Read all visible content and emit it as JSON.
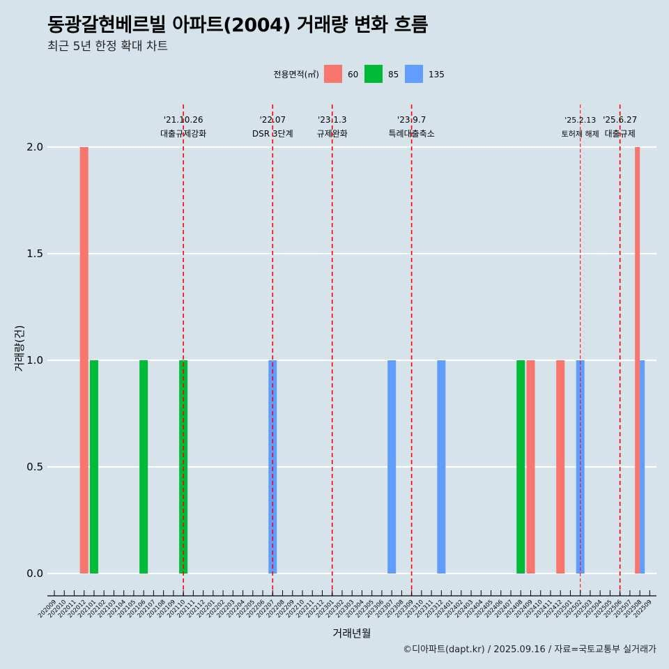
{
  "title": "동광갈현베르빌 아파트(2004) 거래량 변화 흐름",
  "subtitle": "최근 5년 한정 확대 차트",
  "caption": "©디아파트(dapt.kr) / 2025.09.16 / 자료=국토교통부 실거래가",
  "colors": {
    "background": "#d6e3ea",
    "s60": "#f8766d",
    "s85": "#00ba38",
    "s135": "#619cff",
    "event": "#ff0000",
    "grid": "#ffffff"
  },
  "chart_data": {
    "type": "bar",
    "title": "동광갈현베르빌 아파트(2004) 거래량 변화 흐름",
    "xlabel": "거래년월",
    "ylabel": "거래량(건)",
    "ylim": [
      0,
      2
    ],
    "yticks": [
      "0.0",
      "0.5",
      "1.0",
      "1.5",
      "2.0"
    ],
    "legend": {
      "title": "전용면적(㎡)",
      "position": "top"
    },
    "categories": [
      "202009",
      "202010",
      "202011",
      "202012",
      "202101",
      "202102",
      "202103",
      "202104",
      "202105",
      "202106",
      "202107",
      "202108",
      "202109",
      "202110",
      "202111",
      "202112",
      "202201",
      "202202",
      "202203",
      "202204",
      "202205",
      "202206",
      "202207",
      "202208",
      "202209",
      "202210",
      "202211",
      "202212",
      "202301",
      "202302",
      "202303",
      "202304",
      "202305",
      "202306",
      "202307",
      "202308",
      "202309",
      "202310",
      "202311",
      "202312",
      "202401",
      "202402",
      "202403",
      "202404",
      "202405",
      "202406",
      "202407",
      "202408",
      "202409",
      "202410",
      "202411",
      "202412",
      "202501",
      "202502",
      "202503",
      "202504",
      "202505",
      "202506",
      "202507",
      "202508",
      "202509"
    ],
    "series": [
      {
        "name": "60",
        "points": [
          {
            "x": "202012",
            "y": 2
          },
          {
            "x": "202409",
            "y": 1
          },
          {
            "x": "202412",
            "y": 1
          },
          {
            "x": "202508",
            "y": 2
          }
        ]
      },
      {
        "name": "85",
        "points": [
          {
            "x": "202101",
            "y": 1
          },
          {
            "x": "202106",
            "y": 1
          },
          {
            "x": "202110",
            "y": 1
          },
          {
            "x": "202408",
            "y": 1
          }
        ]
      },
      {
        "name": "135",
        "points": [
          {
            "x": "202207",
            "y": 1
          },
          {
            "x": "202307",
            "y": 1
          },
          {
            "x": "202312",
            "y": 1
          },
          {
            "x": "202502",
            "y": 1
          },
          {
            "x": "202508",
            "y": 1
          }
        ]
      }
    ],
    "events": [
      {
        "date": "'21.10.26",
        "label": "대출규제강화",
        "month": "202110",
        "style": "major"
      },
      {
        "date": "'22.07",
        "label": "DSR 3단계",
        "month": "202207",
        "style": "major"
      },
      {
        "date": "'23.1.3",
        "label": "규제완화",
        "month": "202301",
        "style": "major"
      },
      {
        "date": "'23.9.7",
        "label": "특례대출축소",
        "month": "202309",
        "style": "major"
      },
      {
        "date": "'25.2.13",
        "label": "토허제 해제",
        "month": "202502",
        "style": "minor"
      },
      {
        "date": "'25.6.27",
        "label": "대출규제",
        "month": "202506",
        "style": "major"
      }
    ]
  }
}
